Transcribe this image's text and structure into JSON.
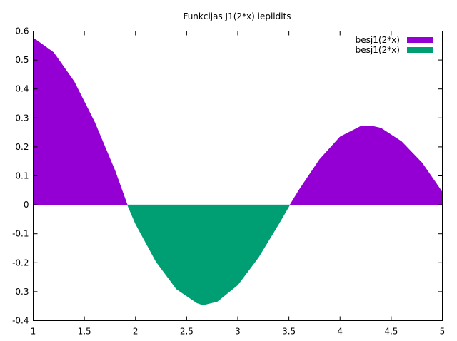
{
  "chart_data": {
    "type": "area",
    "title": "Funkcijas J1(2*x) iepildits",
    "xlabel": "",
    "ylabel": "",
    "xlim": [
      1,
      5
    ],
    "ylim": [
      -0.4,
      0.6
    ],
    "xticks": [
      "1",
      "1.5",
      "2",
      "2.5",
      "3",
      "3.5",
      "4",
      "4.5",
      "5"
    ],
    "yticks": [
      "-0.4",
      "-0.3",
      "-0.2",
      "-0.1",
      "0",
      "0.1",
      "0.2",
      "0.3",
      "0.4",
      "0.5",
      "0.6"
    ],
    "grid": false,
    "legend_position": "top-right",
    "series": [
      {
        "name": "besj1(2*x)",
        "fill": "above zero",
        "color": "#9400d3",
        "x": [
          1.0,
          1.2,
          1.4,
          1.6,
          1.8,
          1.92
        ],
        "y": [
          0.577,
          0.526,
          0.426,
          0.286,
          0.118,
          0.0
        ]
      },
      {
        "name": "besj1(2*x)",
        "fill": "below zero",
        "color": "#009e73",
        "x": [
          1.92,
          2.0,
          2.2,
          2.4,
          2.6,
          2.66,
          2.8,
          3.0,
          3.2,
          3.4,
          3.51
        ],
        "y": [
          0.0,
          -0.066,
          -0.196,
          -0.291,
          -0.339,
          -0.346,
          -0.334,
          -0.277,
          -0.183,
          -0.067,
          0.0
        ]
      },
      {
        "name": "",
        "fill": "above zero",
        "color": "#9400d3",
        "x": [
          3.51,
          3.6,
          3.8,
          4.0,
          4.2,
          4.3,
          4.4,
          4.6,
          4.8,
          5.0
        ],
        "y": [
          0.0,
          0.052,
          0.157,
          0.235,
          0.271,
          0.273,
          0.265,
          0.219,
          0.146,
          0.044
        ]
      }
    ]
  }
}
